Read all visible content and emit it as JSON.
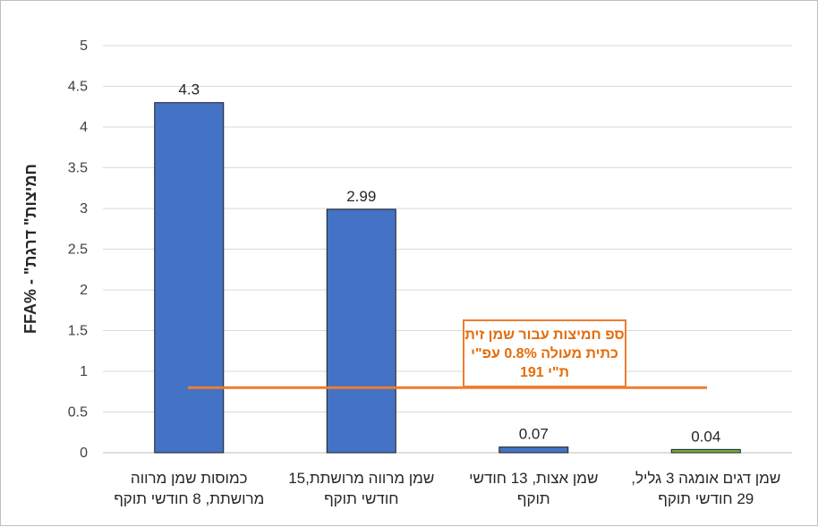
{
  "chart_data": {
    "type": "bar",
    "ylabel": "FFA% - \"חמיצות\" דרגת",
    "ylim": [
      0,
      5
    ],
    "yticks": [
      "0",
      "0.5",
      "1",
      "1.5",
      "2",
      "2.5",
      "3",
      "3.5",
      "4",
      "4.5",
      "5"
    ],
    "grid": true,
    "categories": [
      [
        "כמוסות שמן מרווה",
        "מרושתת, 8 חודשי תוקף"
      ],
      [
        "שמן מרווה מרושתת,15",
        "חודשי תוקף"
      ],
      [
        "שמן אצות, 13 חודשי",
        "תוקף"
      ],
      [
        "שמן דגים אומגה 3 גליל,",
        "29 חודשי תוקף"
      ]
    ],
    "values": [
      4.3,
      2.99,
      0.07,
      0.04
    ],
    "value_labels": [
      "4.3",
      "2.99",
      "0.07",
      "0.04"
    ],
    "bar_colors": [
      "#4472c4",
      "#4472c4",
      "#4472c4",
      "#70ad47"
    ],
    "reference_line": {
      "value": 0.8,
      "color": "#ed7d31",
      "label_lines": [
        "ספ חמיצות עבור שמן זית",
        "כתית מעולה 0.8% עפ\"י",
        "ת\"י 191"
      ]
    }
  }
}
